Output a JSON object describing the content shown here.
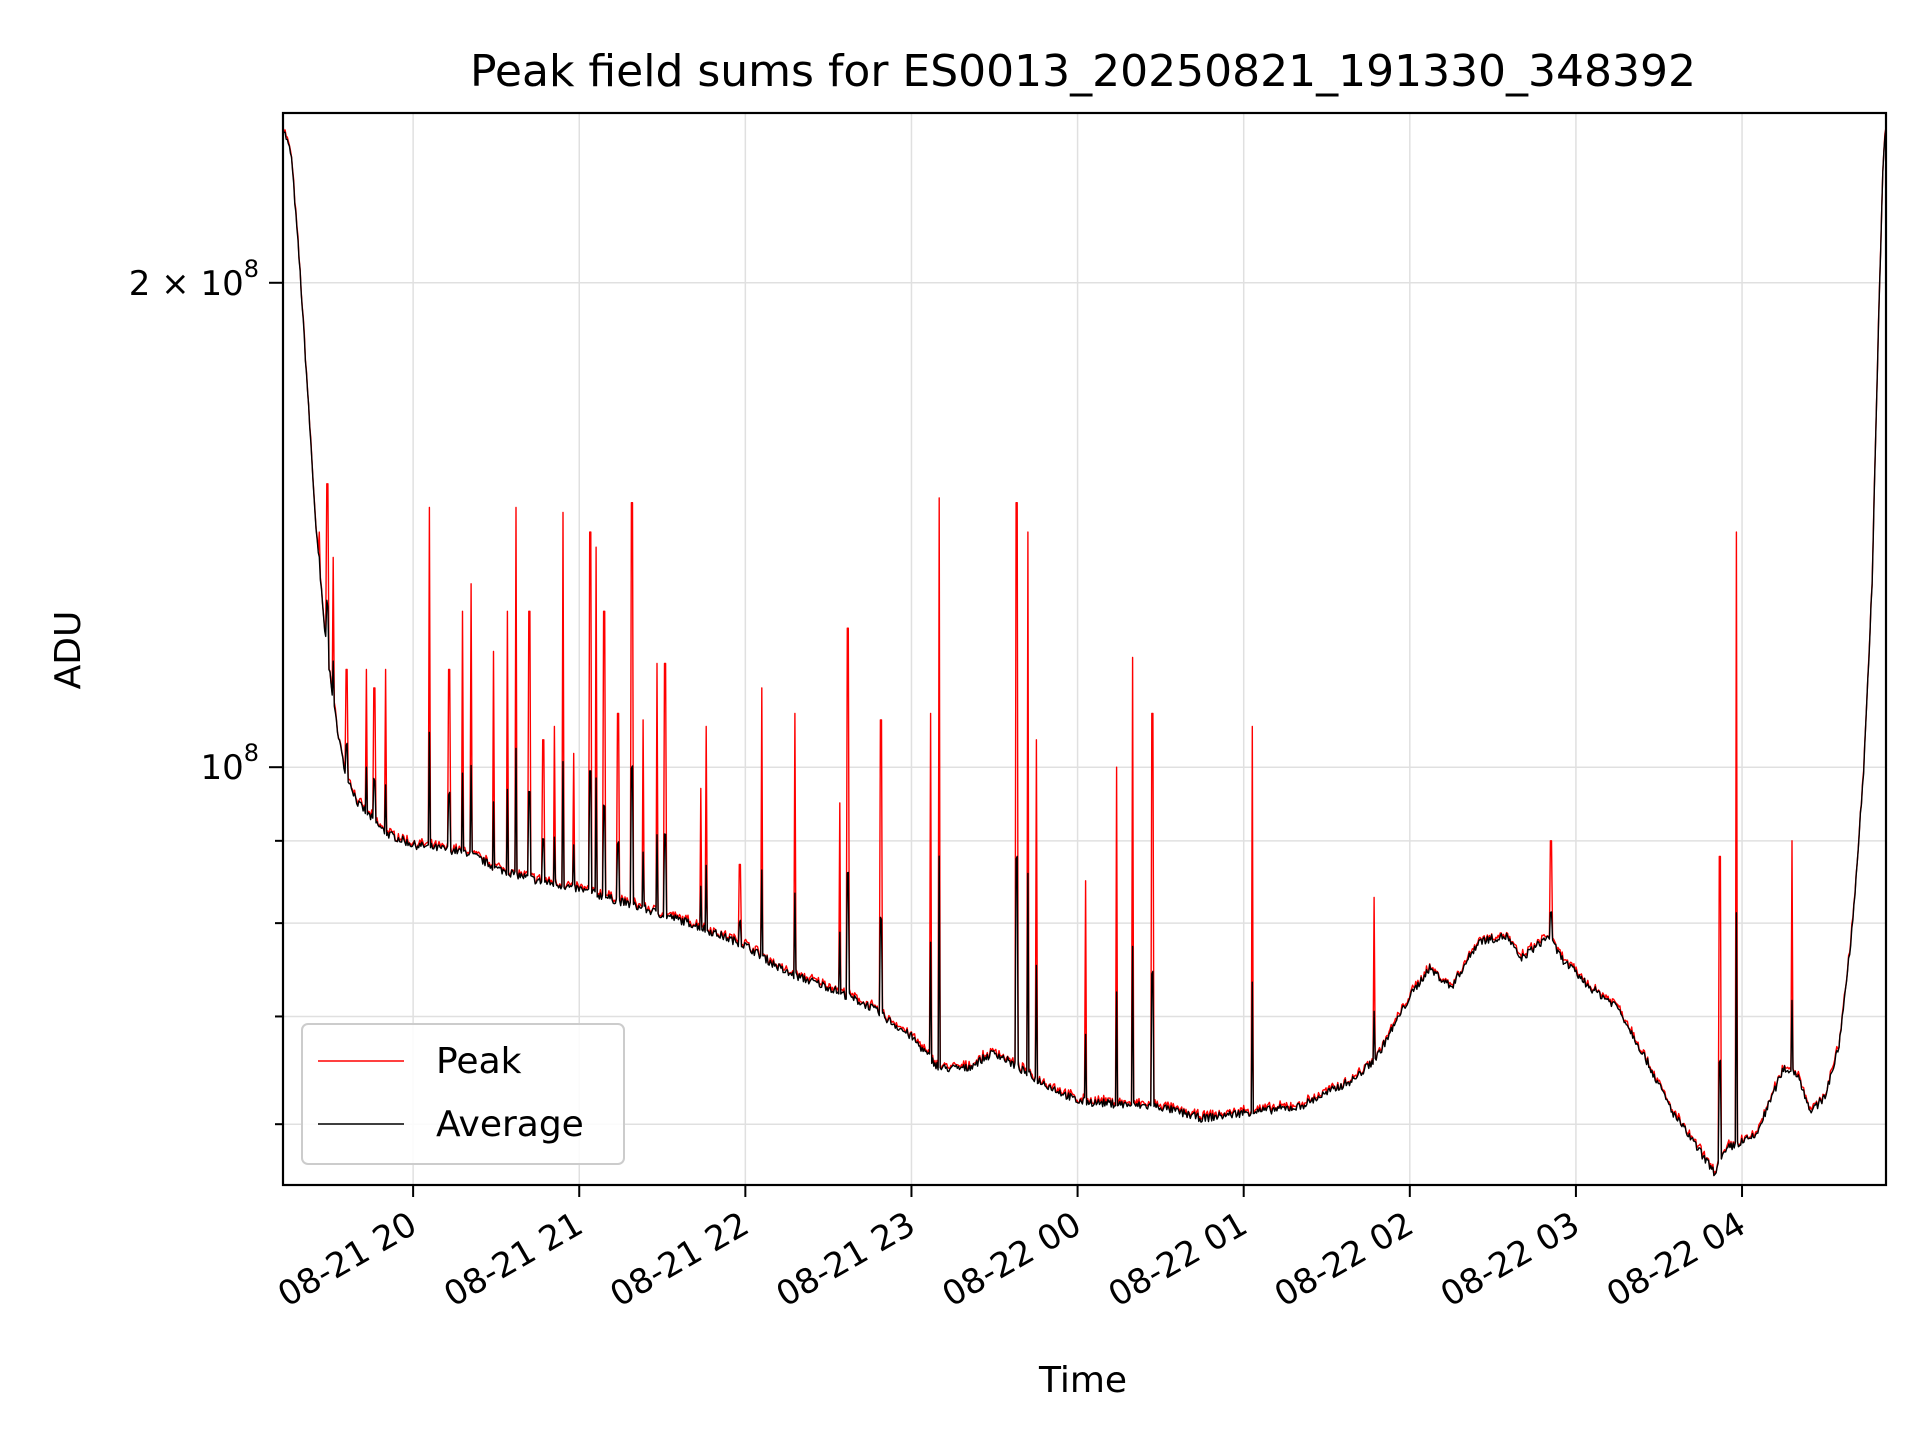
{
  "chart_data": {
    "type": "line",
    "title": "Peak field sums for ES0013_20250821_191330_348392",
    "xlabel": "Time",
    "ylabel": "ADU",
    "yscale": "log",
    "ylim": [
      55000000,
      255000000
    ],
    "xlim": [
      "2025-08-21T19:13:00",
      "2025-08-22T04:52:00"
    ],
    "grid": true,
    "legend_position": "lower-left",
    "colors": {
      "Peak": "#ff0000",
      "Average": "#000000"
    },
    "x_ticks": [
      {
        "value": "2025-08-21T20:00:00",
        "label": "08-21 20"
      },
      {
        "value": "2025-08-21T21:00:00",
        "label": "08-21 21"
      },
      {
        "value": "2025-08-21T22:00:00",
        "label": "08-21 22"
      },
      {
        "value": "2025-08-21T23:00:00",
        "label": "08-21 23"
      },
      {
        "value": "2025-08-22T00:00:00",
        "label": "08-22 00"
      },
      {
        "value": "2025-08-22T01:00:00",
        "label": "08-22 01"
      },
      {
        "value": "2025-08-22T02:00:00",
        "label": "08-22 02"
      },
      {
        "value": "2025-08-22T03:00:00",
        "label": "08-22 03"
      },
      {
        "value": "2025-08-22T04:00:00",
        "label": "08-22 04"
      }
    ],
    "y_ticks": [
      {
        "value": 200000000,
        "mantissa": "2",
        "times": "×",
        "base": "10",
        "exp": "8"
      },
      {
        "value": 100000000,
        "mantissa": "",
        "times": "",
        "base": "10",
        "exp": "8"
      }
    ],
    "y_minor_ticks": [
      60000000,
      70000000,
      80000000,
      90000000
    ],
    "legend": [
      "Peak",
      "Average"
    ],
    "baseline": [
      [
        "2025-08-21T19:13:00",
        250000000
      ],
      [
        "2025-08-21T19:16:00",
        240000000
      ],
      [
        "2025-08-21T19:19:00",
        205000000
      ],
      [
        "2025-08-21T19:22:00",
        170000000
      ],
      [
        "2025-08-21T19:25:00",
        140000000
      ],
      [
        "2025-08-21T19:28:00",
        122000000
      ],
      [
        "2025-08-21T19:31:00",
        110000000
      ],
      [
        "2025-08-21T19:35:00",
        100000000
      ],
      [
        "2025-08-21T19:40:00",
        95000000
      ],
      [
        "2025-08-21T19:50:00",
        91000000
      ],
      [
        "2025-08-21T20:00:00",
        89500000
      ],
      [
        "2025-08-21T20:10:00",
        89000000
      ],
      [
        "2025-08-21T20:20:00",
        88500000
      ],
      [
        "2025-08-21T20:30:00",
        86500000
      ],
      [
        "2025-08-21T20:45:00",
        85000000
      ],
      [
        "2025-08-21T21:00:00",
        84000000
      ],
      [
        "2025-08-21T21:20:00",
        82000000
      ],
      [
        "2025-08-21T21:40:00",
        80000000
      ],
      [
        "2025-08-21T22:00:00",
        77500000
      ],
      [
        "2025-08-21T22:15:00",
        74500000
      ],
      [
        "2025-08-21T22:30:00",
        73000000
      ],
      [
        "2025-08-21T22:45:00",
        71000000
      ],
      [
        "2025-08-21T23:00:00",
        68000000
      ],
      [
        "2025-08-21T23:10:00",
        65000000
      ],
      [
        "2025-08-21T23:20:00",
        65000000
      ],
      [
        "2025-08-21T23:30:00",
        66500000
      ],
      [
        "2025-08-21T23:45:00",
        64000000
      ],
      [
        "2025-08-22T00:00:00",
        62000000
      ],
      [
        "2025-08-22T00:30:00",
        61500000
      ],
      [
        "2025-08-22T00:45:00",
        60500000
      ],
      [
        "2025-08-22T01:00:00",
        61000000
      ],
      [
        "2025-08-22T01:20:00",
        61500000
      ],
      [
        "2025-08-22T01:40:00",
        64000000
      ],
      [
        "2025-08-22T01:48:00",
        66000000
      ],
      [
        "2025-08-22T02:00:00",
        72000000
      ],
      [
        "2025-08-22T02:07:00",
        75000000
      ],
      [
        "2025-08-22T02:15:00",
        73000000
      ],
      [
        "2025-08-22T02:25:00",
        78000000
      ],
      [
        "2025-08-22T02:35:00",
        78500000
      ],
      [
        "2025-08-22T02:40:00",
        76000000
      ],
      [
        "2025-08-22T02:50:00",
        78500000
      ],
      [
        "2025-08-22T02:55:00",
        76000000
      ],
      [
        "2025-08-22T03:05:00",
        73000000
      ],
      [
        "2025-08-22T03:15:00",
        71000000
      ],
      [
        "2025-08-22T03:25:00",
        66000000
      ],
      [
        "2025-08-22T03:35:00",
        61000000
      ],
      [
        "2025-08-22T03:50:00",
        56000000
      ],
      [
        "2025-08-22T03:55:00",
        58000000
      ],
      [
        "2025-08-22T04:05:00",
        59000000
      ],
      [
        "2025-08-22T04:15:00",
        65000000
      ],
      [
        "2025-08-22T04:20:00",
        64500000
      ],
      [
        "2025-08-22T04:25:00",
        61000000
      ],
      [
        "2025-08-22T04:30:00",
        62500000
      ],
      [
        "2025-08-22T04:35:00",
        67000000
      ],
      [
        "2025-08-22T04:40:00",
        80000000
      ],
      [
        "2025-08-22T04:44:00",
        100000000
      ],
      [
        "2025-08-22T04:47:00",
        130000000
      ],
      [
        "2025-08-22T04:49:00",
        180000000
      ],
      [
        "2025-08-22T04:51:00",
        240000000
      ],
      [
        "2025-08-22T04:52:00",
        250000000
      ]
    ],
    "spikes": [
      [
        "2025-08-21T19:26:00",
        140000000
      ],
      [
        "2025-08-21T19:29:00",
        150000000
      ],
      [
        "2025-08-21T19:31:00",
        135000000
      ],
      [
        "2025-08-21T19:36:00",
        115000000
      ],
      [
        "2025-08-21T19:43:00",
        115000000
      ],
      [
        "2025-08-21T19:46:00",
        112000000
      ],
      [
        "2025-08-21T19:50:00",
        115000000
      ],
      [
        "2025-08-21T20:06:00",
        145000000
      ],
      [
        "2025-08-21T20:13:00",
        115000000
      ],
      [
        "2025-08-21T20:18:00",
        125000000
      ],
      [
        "2025-08-21T20:21:00",
        130000000
      ],
      [
        "2025-08-21T20:29:00",
        118000000
      ],
      [
        "2025-08-21T20:34:00",
        125000000
      ],
      [
        "2025-08-21T20:37:00",
        145000000
      ],
      [
        "2025-08-21T20:42:00",
        125000000
      ],
      [
        "2025-08-21T20:47:00",
        104000000
      ],
      [
        "2025-08-21T20:51:00",
        106000000
      ],
      [
        "2025-08-21T20:54:00",
        144000000
      ],
      [
        "2025-08-21T20:58:00",
        102000000
      ],
      [
        "2025-08-21T21:04:00",
        140000000
      ],
      [
        "2025-08-21T21:06:00",
        137000000
      ],
      [
        "2025-08-21T21:09:00",
        125000000
      ],
      [
        "2025-08-21T21:14:00",
        108000000
      ],
      [
        "2025-08-21T21:19:00",
        146000000
      ],
      [
        "2025-08-21T21:23:00",
        107000000
      ],
      [
        "2025-08-21T21:28:00",
        116000000
      ],
      [
        "2025-08-21T21:31:00",
        116000000
      ],
      [
        "2025-08-21T21:44:00",
        97000000
      ],
      [
        "2025-08-21T21:46:00",
        106000000
      ],
      [
        "2025-08-21T21:58:00",
        87000000
      ],
      [
        "2025-08-21T22:06:00",
        112000000
      ],
      [
        "2025-08-21T22:18:00",
        108000000
      ],
      [
        "2025-08-21T22:34:00",
        95000000
      ],
      [
        "2025-08-21T22:37:00",
        122000000
      ],
      [
        "2025-08-21T22:49:00",
        107000000
      ],
      [
        "2025-08-21T23:07:00",
        108000000
      ],
      [
        "2025-08-21T23:10:00",
        147000000
      ],
      [
        "2025-08-21T23:38:00",
        146000000
      ],
      [
        "2025-08-21T23:42:00",
        140000000
      ],
      [
        "2025-08-21T23:45:00",
        104000000
      ],
      [
        "2025-08-22T00:03:00",
        85000000
      ],
      [
        "2025-08-22T00:14:00",
        100000000
      ],
      [
        "2025-08-22T00:20:00",
        117000000
      ],
      [
        "2025-08-22T00:27:00",
        108000000
      ],
      [
        "2025-08-22T01:03:00",
        106000000
      ],
      [
        "2025-08-22T01:47:00",
        83000000
      ],
      [
        "2025-08-22T02:51:00",
        90000000
      ],
      [
        "2025-08-22T03:52:00",
        88000000
      ],
      [
        "2025-08-22T03:58:00",
        140000000
      ],
      [
        "2025-08-22T04:18:00",
        90000000
      ]
    ]
  }
}
